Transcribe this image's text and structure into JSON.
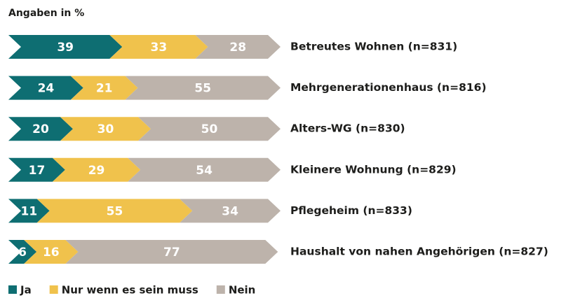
{
  "chart_data": {
    "type": "stacked-bar",
    "orientation": "horizontal",
    "title": "Angaben in %",
    "categories": [
      "Betreutes Wohnen (n=831)",
      "Mehrgenerationenhaus (n=816)",
      "Alters-WG (n=830)",
      "Kleinere Wohnung (n=829)",
      "Pflegeheim (n=833)",
      "Haushalt von nahen Angehörigen (n=827)"
    ],
    "series": [
      {
        "name": "Ja",
        "color": "#0e6e72",
        "values": [
          39,
          24,
          20,
          17,
          11,
          6
        ]
      },
      {
        "name": "Nur wenn es sein muss",
        "color": "#f0c24c",
        "values": [
          33,
          21,
          30,
          29,
          55,
          16
        ]
      },
      {
        "name": "Nein",
        "color": "#bdb3ab",
        "values": [
          28,
          55,
          50,
          54,
          34,
          77
        ]
      }
    ],
    "xlim": [
      0,
      100
    ],
    "legend": "bottom-left"
  }
}
